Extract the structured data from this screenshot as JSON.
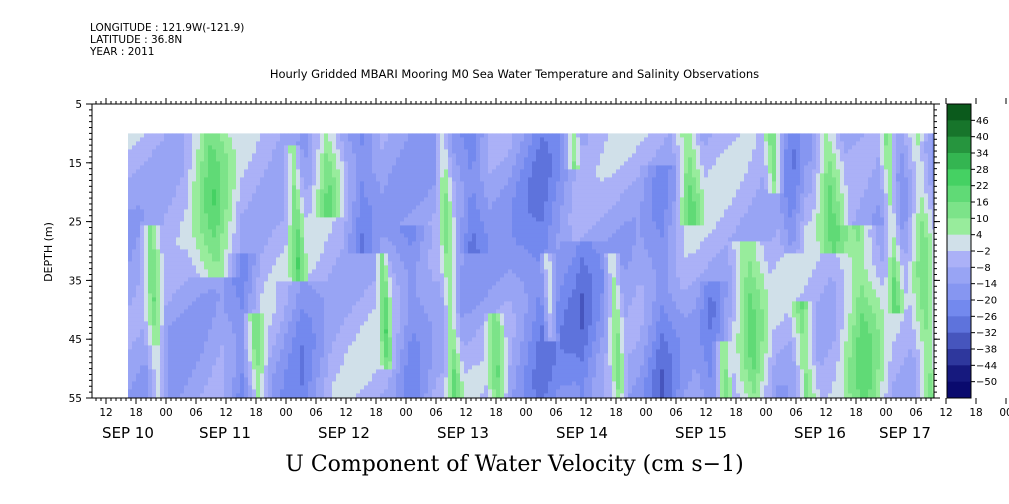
{
  "header": {
    "longitude": "LONGITUDE : 121.9W(-121.9)",
    "latitude": "LATITUDE : 36.8N",
    "year": "YEAR : 2011"
  },
  "chart_data": {
    "type": "heatmap",
    "title": "Hourly Gridded MBARI Mooring M0 Sea Water Temperature and Salinity Observations",
    "xlabel": "U Component of Water Velocity (cm s−1)",
    "ylabel": "DEPTH (m)",
    "y_ticks": [
      "5",
      "15",
      "25",
      "35",
      "45",
      "55"
    ],
    "ylim": [
      55,
      5
    ],
    "x_hour_ticks": [
      "12",
      "18",
      "00",
      "06",
      "12",
      "18",
      "00",
      "06",
      "12",
      "18",
      "00",
      "06",
      "12",
      "18",
      "00",
      "06",
      "12",
      "18",
      "00",
      "06",
      "12",
      "18",
      "00",
      "06",
      "12",
      "18",
      "00",
      "06",
      "12",
      "18",
      "00",
      "06"
    ],
    "x_date_labels": [
      "SEP 10",
      "SEP 11",
      "SEP 12",
      "SEP 13",
      "SEP 14",
      "SEP 15",
      "SEP 16",
      "SEP 17"
    ],
    "data_start_depth": 10,
    "colorbar_levels": [
      "46",
      "40",
      "34",
      "28",
      "22",
      "16",
      "10",
      "4",
      "−2",
      "−8",
      "−14",
      "−20",
      "−26",
      "−32",
      "−38",
      "−44",
      "−50"
    ],
    "colorbar_range": [
      -50,
      52
    ],
    "colors": {
      "positive_light": "#a6f0a6",
      "positive_mid": "#40d060",
      "positive_dark": "#0b5a1c",
      "negative_light": "#b4b8f8",
      "negative_mid": "#6a82ec",
      "negative_dark": "#0a0a6e"
    }
  }
}
